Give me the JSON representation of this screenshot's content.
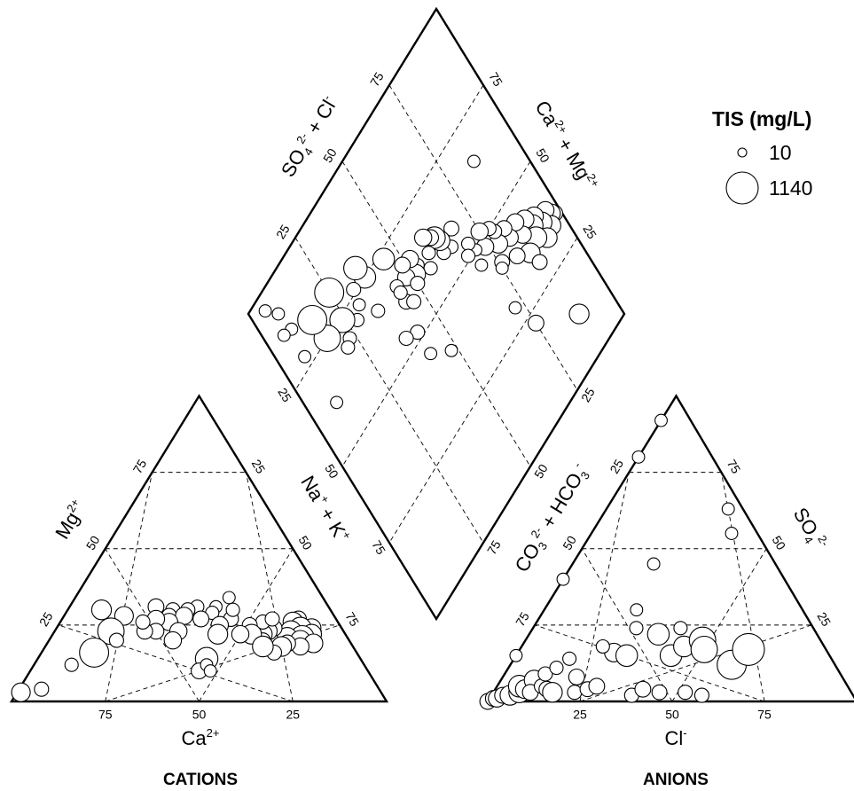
{
  "chart_data": {
    "type": "scatter",
    "subtype": "piper-diagram",
    "title": "",
    "legend": {
      "title": "TIS (mg/L)",
      "placement": "top-right",
      "entries": [
        {
          "label": "10",
          "value": 10
        },
        {
          "label": "1140",
          "value": 1140
        }
      ]
    },
    "grid": true,
    "ticks": [
      "25",
      "50",
      "75"
    ],
    "cation_triangle": {
      "panel_label": "CATIONS",
      "axes": {
        "bottom": {
          "label_main": "Ca",
          "label_sup": "2+"
        },
        "left": {
          "label_main": "Mg",
          "label_sup": "2+"
        },
        "right": {
          "label_main": "Na",
          "label_sup1": "+",
          "label_mid": " + K",
          "label_sup2": "+"
        }
      },
      "points": [
        {
          "ca": 10,
          "mg": 27,
          "tis": 150
        },
        {
          "ca": 12,
          "mg": 26,
          "tis": 300
        },
        {
          "ca": 8,
          "mg": 24,
          "tis": 250
        },
        {
          "ca": 11,
          "mg": 24,
          "tis": 400
        },
        {
          "ca": 14,
          "mg": 23,
          "tis": 350
        },
        {
          "ca": 9,
          "mg": 22,
          "tis": 300
        },
        {
          "ca": 12,
          "mg": 21,
          "tis": 500
        },
        {
          "ca": 16,
          "mg": 21,
          "tis": 300
        },
        {
          "ca": 13,
          "mg": 20,
          "tis": 300
        },
        {
          "ca": 10,
          "mg": 19,
          "tis": 250
        },
        {
          "ca": 14,
          "mg": 18,
          "tis": 200
        },
        {
          "ca": 17,
          "mg": 19,
          "tis": 180
        },
        {
          "ca": 18,
          "mg": 24,
          "tis": 150
        },
        {
          "ca": 20,
          "mg": 23,
          "tis": 200
        },
        {
          "ca": 22,
          "mg": 22,
          "tis": 250
        },
        {
          "ca": 20,
          "mg": 26,
          "tis": 100
        },
        {
          "ca": 24,
          "mg": 25,
          "tis": 120
        },
        {
          "ca": 17,
          "mg": 27,
          "tis": 100
        },
        {
          "ca": 23,
          "mg": 20,
          "tis": 120
        },
        {
          "ca": 19,
          "mg": 18,
          "tis": 300
        },
        {
          "ca": 22,
          "mg": 16,
          "tis": 120
        },
        {
          "ca": 25,
          "mg": 22,
          "tis": 300
        },
        {
          "ca": 24,
          "mg": 18,
          "tis": 350
        },
        {
          "ca": 28,
          "mg": 22,
          "tis": 200
        },
        {
          "ca": 28,
          "mg": 27,
          "tis": 120
        },
        {
          "ca": 26,
          "mg": 30,
          "tis": 80
        },
        {
          "ca": 25,
          "mg": 34,
          "tis": 60
        },
        {
          "ca": 30,
          "mg": 31,
          "tis": 60
        },
        {
          "ca": 32,
          "mg": 29,
          "tis": 80
        },
        {
          "ca": 35,
          "mg": 31,
          "tis": 80
        },
        {
          "ca": 38,
          "mg": 30,
          "tis": 100
        },
        {
          "ca": 42,
          "mg": 30,
          "tis": 100
        },
        {
          "ca": 44,
          "mg": 28,
          "tis": 120
        },
        {
          "ca": 36,
          "mg": 27,
          "tis": 150
        },
        {
          "ca": 32,
          "mg": 25,
          "tis": 200
        },
        {
          "ca": 34,
          "mg": 22,
          "tis": 300
        },
        {
          "ca": 40,
          "mg": 28,
          "tis": 200
        },
        {
          "ca": 46,
          "mg": 31,
          "tis": 150
        },
        {
          "ca": 45,
          "mg": 26,
          "tis": 200
        },
        {
          "ca": 48,
          "mg": 27,
          "tis": 200
        },
        {
          "ca": 50,
          "mg": 23,
          "tis": 150
        },
        {
          "ca": 53,
          "mg": 23,
          "tis": 150
        },
        {
          "ca": 56,
          "mg": 28,
          "tis": 250
        },
        {
          "ca": 52,
          "mg": 26,
          "tis": 100
        },
        {
          "ca": 44,
          "mg": 23,
          "tis": 200
        },
        {
          "ca": 47,
          "mg": 20,
          "tis": 200
        },
        {
          "ca": 41,
          "mg": 14,
          "tis": 450
        },
        {
          "ca": 45,
          "mg": 10,
          "tis": 150
        },
        {
          "ca": 42,
          "mg": 12,
          "tis": 60
        },
        {
          "ca": 42,
          "mg": 10,
          "tis": 60
        },
        {
          "ca": 62,
          "mg": 23,
          "tis": 700
        },
        {
          "ca": 62,
          "mg": 20,
          "tis": 100
        },
        {
          "ca": 70,
          "mg": 16,
          "tis": 900
        },
        {
          "ca": 61,
          "mg": 30,
          "tis": 300
        },
        {
          "ca": 78,
          "mg": 12,
          "tis": 80
        },
        {
          "ca": 90,
          "mg": 4,
          "tis": 100
        },
        {
          "ca": 96,
          "mg": 3,
          "tis": 250
        }
      ]
    },
    "anion_triangle": {
      "panel_label": "ANIONS",
      "axes": {
        "bottom": {
          "label_main": "Cl",
          "label_sup": "-"
        },
        "left": {
          "label_main": "CO",
          "label_sub1": "3",
          "label_sup1": "2-",
          "label_mid": " + HCO",
          "label_sub2": "3",
          "label_sup2": "-"
        },
        "right": {
          "label_main": "SO",
          "label_sub": "4",
          "label_sup": "2-"
        }
      },
      "points": [
        {
          "cl": 0,
          "so4": 0,
          "tis": 150
        },
        {
          "cl": 1,
          "so4": 1,
          "tis": 150
        },
        {
          "cl": 2,
          "so4": 1,
          "tis": 200
        },
        {
          "cl": 3,
          "so4": 2,
          "tis": 150
        },
        {
          "cl": 5,
          "so4": 2,
          "tis": 300
        },
        {
          "cl": 7,
          "so4": 3,
          "tis": 350
        },
        {
          "cl": 6,
          "so4": 5,
          "tis": 400
        },
        {
          "cl": 8,
          "so4": 4,
          "tis": 250
        },
        {
          "cl": 9,
          "so4": 7,
          "tis": 300
        },
        {
          "cl": 10,
          "so4": 3,
          "tis": 150
        },
        {
          "cl": 12,
          "so4": 5,
          "tis": 100
        },
        {
          "cl": 11,
          "so4": 9,
          "tis": 100
        },
        {
          "cl": 14,
          "so4": 4,
          "tis": 150
        },
        {
          "cl": 16,
          "so4": 3,
          "tis": 300
        },
        {
          "cl": 13,
          "so4": 11,
          "tis": 80
        },
        {
          "cl": 15,
          "so4": 14,
          "tis": 80
        },
        {
          "cl": 20,
          "so4": 8,
          "tis": 150
        },
        {
          "cl": 22,
          "so4": 3,
          "tis": 100
        },
        {
          "cl": 25,
          "so4": 4,
          "tis": 120
        },
        {
          "cl": 27,
          "so4": 5,
          "tis": 150
        },
        {
          "cl": 26,
          "so4": 16,
          "tis": 250
        },
        {
          "cl": 30,
          "so4": 15,
          "tis": 400
        },
        {
          "cl": 22,
          "so4": 18,
          "tis": 80
        },
        {
          "cl": 28,
          "so4": 24,
          "tis": 80
        },
        {
          "cl": 38,
          "so4": 2,
          "tis": 100
        },
        {
          "cl": 40,
          "so4": 4,
          "tis": 150
        },
        {
          "cl": 45,
          "so4": 3,
          "tis": 120
        },
        {
          "cl": 52,
          "so4": 3,
          "tis": 100
        },
        {
          "cl": 57,
          "so4": 2,
          "tis": 100
        },
        {
          "cl": 35,
          "so4": 22,
          "tis": 400
        },
        {
          "cl": 42,
          "so4": 15,
          "tis": 400
        },
        {
          "cl": 44,
          "so4": 18,
          "tis": 350
        },
        {
          "cl": 40,
          "so4": 24,
          "tis": 80
        },
        {
          "cl": 48,
          "so4": 20,
          "tis": 700
        },
        {
          "cl": 50,
          "so4": 17,
          "tis": 700
        },
        {
          "cl": 60,
          "so4": 12,
          "tis": 900
        },
        {
          "cl": 62,
          "so4": 17,
          "tis": 1140
        },
        {
          "cl": 25,
          "so4": 30,
          "tis": 60
        },
        {
          "cl": 22,
          "so4": 45,
          "tis": 60
        },
        {
          "cl": 38,
          "so4": 55,
          "tis": 60
        },
        {
          "cl": 33,
          "so4": 63,
          "tis": 60
        },
        {
          "cl": 0,
          "so4": 80,
          "tis": 60
        },
        {
          "cl": 0,
          "so4": 92,
          "tis": 60
        },
        {
          "cl": 0,
          "so4": 40,
          "tis": 60
        },
        {
          "cl": 0,
          "so4": 15,
          "tis": 60
        }
      ]
    },
    "diamond": {
      "axes": {
        "upper_left": {
          "label_main": "SO",
          "label_sub": "4",
          "label_sup1": "2-",
          "label_mid": " + Cl",
          "label_sup2": "-"
        },
        "upper_right": {
          "label_main": "Ca",
          "label_sup1": "2+",
          "label_mid": " + Mg",
          "label_sup2": "2+"
        }
      },
      "points": [
        {
          "so4cl": 35,
          "camg": 98,
          "tis": 150
        },
        {
          "so4cl": 36,
          "camg": 97,
          "tis": 250
        },
        {
          "so4cl": 38,
          "camg": 96,
          "tis": 200
        },
        {
          "so4cl": 34,
          "camg": 95,
          "tis": 300
        },
        {
          "so4cl": 37,
          "camg": 93,
          "tis": 350
        },
        {
          "so4cl": 40,
          "camg": 92,
          "tis": 250
        },
        {
          "so4cl": 33,
          "camg": 92,
          "tis": 300
        },
        {
          "so4cl": 39,
          "camg": 90,
          "tis": 400
        },
        {
          "so4cl": 42,
          "camg": 89,
          "tis": 250
        },
        {
          "so4cl": 36,
          "camg": 89,
          "tis": 400
        },
        {
          "so4cl": 35,
          "camg": 85,
          "tis": 300
        },
        {
          "so4cl": 40,
          "camg": 86,
          "tis": 200
        },
        {
          "so4cl": 44,
          "camg": 86,
          "tis": 200
        },
        {
          "so4cl": 31,
          "camg": 86,
          "tis": 120
        },
        {
          "so4cl": 43,
          "camg": 82,
          "tis": 200
        },
        {
          "so4cl": 38,
          "camg": 81,
          "tis": 150
        },
        {
          "so4cl": 46,
          "camg": 82,
          "tis": 150
        },
        {
          "so4cl": 45,
          "camg": 78,
          "tis": 250
        },
        {
          "so4cl": 48,
          "camg": 79,
          "tis": 100
        },
        {
          "so4cl": 50,
          "camg": 78,
          "tis": 100
        },
        {
          "so4cl": 41,
          "camg": 76,
          "tis": 120
        },
        {
          "so4cl": 48,
          "camg": 74,
          "tis": 200
        },
        {
          "so4cl": 50,
          "camg": 71,
          "tis": 60
        },
        {
          "so4cl": 53,
          "camg": 70,
          "tis": 80
        },
        {
          "so4cl": 52,
          "camg": 75,
          "tis": 200
        },
        {
          "so4cl": 51,
          "camg": 68,
          "tis": 80
        },
        {
          "so4cl": 46,
          "camg": 70,
          "tis": 60
        },
        {
          "so4cl": 60,
          "camg": 68,
          "tis": 120
        },
        {
          "so4cl": 57,
          "camg": 65,
          "tis": 80
        },
        {
          "so4cl": 58,
          "camg": 62,
          "tis": 80
        },
        {
          "so4cl": 61,
          "camg": 63,
          "tis": 300
        },
        {
          "so4cl": 63,
          "camg": 62,
          "tis": 400
        },
        {
          "so4cl": 62,
          "camg": 58,
          "tis": 80
        },
        {
          "so4cl": 64,
          "camg": 61,
          "tis": 150
        },
        {
          "so4cl": 59,
          "camg": 56,
          "tis": 80
        },
        {
          "so4cl": 66,
          "camg": 59,
          "tis": 200
        },
        {
          "so4cl": 63,
          "camg": 53,
          "tis": 80
        },
        {
          "so4cl": 62,
          "camg": 51,
          "tis": 300
        },
        {
          "so4cl": 66,
          "camg": 52,
          "tis": 200
        },
        {
          "so4cl": 64,
          "camg": 48,
          "tis": 200
        },
        {
          "so4cl": 60,
          "camg": 50,
          "tis": 100
        },
        {
          "so4cl": 67,
          "camg": 49,
          "tis": 150
        },
        {
          "so4cl": 60,
          "camg": 44,
          "tis": 120
        },
        {
          "so4cl": 58,
          "camg": 46,
          "tis": 100
        },
        {
          "so4cl": 65,
          "camg": 44,
          "tis": 80
        },
        {
          "so4cl": 63,
          "camg": 44,
          "tis": 80
        },
        {
          "so4cl": 52,
          "camg": 42,
          "tis": 100
        },
        {
          "so4cl": 54,
          "camg": 38,
          "tis": 100
        },
        {
          "so4cl": 73,
          "camg": 45,
          "tis": 400
        },
        {
          "so4cl": 75,
          "camg": 37,
          "tis": 400
        },
        {
          "so4cl": 79,
          "camg": 36,
          "tis": 500
        },
        {
          "so4cl": 76,
          "camg": 32,
          "tis": 100
        },
        {
          "so4cl": 66,
          "camg": 35,
          "tis": 80
        },
        {
          "so4cl": 72,
          "camg": 31,
          "tis": 60
        },
        {
          "so4cl": 70,
          "camg": 28,
          "tis": 80
        },
        {
          "so4cl": 74,
          "camg": 24,
          "tis": 600
        },
        {
          "so4cl": 69,
          "camg": 23,
          "tis": 80
        },
        {
          "so4cl": 82,
          "camg": 25,
          "tis": 900
        },
        {
          "so4cl": 68,
          "camg": 21,
          "tis": 80
        },
        {
          "so4cl": 75,
          "camg": 17,
          "tis": 700
        },
        {
          "so4cl": 82,
          "camg": 16,
          "tis": 900
        },
        {
          "so4cl": 86,
          "camg": 9,
          "tis": 60
        },
        {
          "so4cl": 87,
          "camg": 6,
          "tis": 60
        },
        {
          "so4cl": 78,
          "camg": 8,
          "tis": 60
        },
        {
          "so4cl": 62,
          "camg": 9,
          "tis": 60
        },
        {
          "so4cl": 92,
          "camg": 8,
          "tis": 60
        },
        {
          "so4cl": 96,
          "camg": 5,
          "tis": 60
        },
        {
          "so4cl": 40,
          "camg": 48,
          "tis": 60
        },
        {
          "so4cl": 30,
          "camg": 72,
          "tis": 60
        },
        {
          "so4cl": 40,
          "camg": 75,
          "tis": 60
        },
        {
          "so4cl": 22,
          "camg": 75,
          "tis": 150
        },
        {
          "so4cl": 12,
          "camg": 88,
          "tis": 300
        },
        {
          "so4cl": 65,
          "camg": 85,
          "tis": 60
        },
        {
          "so4cl": 45,
          "camg": 42,
          "tis": 60
        }
      ]
    }
  }
}
